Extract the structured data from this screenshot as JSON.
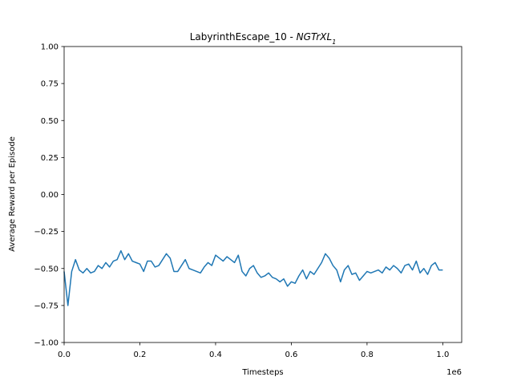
{
  "chart_data": {
    "type": "line",
    "title": "LabyrinthEscape_10 - ",
    "title_model": "NGTrXL",
    "title_subscript": "1",
    "xlabel": "Timesteps",
    "ylabel": "Average Reward per Episode",
    "x_offset_label": "1e6",
    "xlim": [
      0,
      1050000
    ],
    "ylim": [
      -1,
      1
    ],
    "xticks": [
      {
        "value": 0,
        "label": "0.0"
      },
      {
        "value": 200000,
        "label": "0.2"
      },
      {
        "value": 400000,
        "label": "0.4"
      },
      {
        "value": 600000,
        "label": "0.6"
      },
      {
        "value": 800000,
        "label": "0.8"
      },
      {
        "value": 1000000,
        "label": "1.0"
      }
    ],
    "yticks": [
      {
        "value": -1,
        "label": "−1.00"
      },
      {
        "value": -0.75,
        "label": "−0.75"
      },
      {
        "value": -0.5,
        "label": "−0.50"
      },
      {
        "value": -0.25,
        "label": "−0.25"
      },
      {
        "value": 0,
        "label": "0.00"
      },
      {
        "value": 0.25,
        "label": "0.25"
      },
      {
        "value": 0.5,
        "label": "0.50"
      },
      {
        "value": 0.75,
        "label": "0.75"
      },
      {
        "value": 1,
        "label": "1.00"
      }
    ],
    "x": [
      0,
      10000,
      20000,
      30000,
      40000,
      50000,
      60000,
      70000,
      80000,
      90000,
      100000,
      110000,
      120000,
      130000,
      140000,
      150000,
      160000,
      170000,
      180000,
      190000,
      200000,
      210000,
      220000,
      230000,
      240000,
      250000,
      260000,
      270000,
      280000,
      290000,
      300000,
      310000,
      320000,
      330000,
      340000,
      350000,
      360000,
      370000,
      380000,
      390000,
      400000,
      410000,
      420000,
      430000,
      440000,
      450000,
      460000,
      470000,
      480000,
      490000,
      500000,
      510000,
      520000,
      530000,
      540000,
      550000,
      560000,
      570000,
      580000,
      590000,
      600000,
      610000,
      620000,
      630000,
      640000,
      650000,
      660000,
      670000,
      680000,
      690000,
      700000,
      710000,
      720000,
      730000,
      740000,
      750000,
      760000,
      770000,
      780000,
      790000,
      800000,
      810000,
      820000,
      830000,
      840000,
      850000,
      860000,
      870000,
      880000,
      890000,
      900000,
      910000,
      920000,
      930000,
      940000,
      950000,
      960000,
      970000,
      980000,
      990000,
      1000000
    ],
    "series": [
      {
        "color": "#1f77b4",
        "values": [
          -0.52,
          -0.75,
          -0.52,
          -0.44,
          -0.51,
          -0.53,
          -0.5,
          -0.53,
          -0.52,
          -0.48,
          -0.5,
          -0.46,
          -0.49,
          -0.45,
          -0.44,
          -0.38,
          -0.44,
          -0.4,
          -0.45,
          -0.46,
          -0.47,
          -0.52,
          -0.45,
          -0.45,
          -0.49,
          -0.48,
          -0.44,
          -0.4,
          -0.43,
          -0.52,
          -0.52,
          -0.48,
          -0.44,
          -0.5,
          -0.51,
          -0.52,
          -0.53,
          -0.49,
          -0.46,
          -0.48,
          -0.41,
          -0.43,
          -0.45,
          -0.42,
          -0.44,
          -0.46,
          -0.41,
          -0.52,
          -0.55,
          -0.5,
          -0.48,
          -0.53,
          -0.56,
          -0.55,
          -0.53,
          -0.56,
          -0.57,
          -0.59,
          -0.57,
          -0.62,
          -0.59,
          -0.6,
          -0.55,
          -0.51,
          -0.57,
          -0.52,
          -0.54,
          -0.5,
          -0.46,
          -0.4,
          -0.43,
          -0.48,
          -0.51,
          -0.59,
          -0.51,
          -0.48,
          -0.54,
          -0.53,
          -0.58,
          -0.55,
          -0.52,
          -0.53,
          -0.52,
          -0.51,
          -0.53,
          -0.49,
          -0.51,
          -0.48,
          -0.5,
          -0.53,
          -0.48,
          -0.47,
          -0.51,
          -0.45,
          -0.53,
          -0.5,
          -0.54,
          -0.48,
          -0.46,
          -0.51,
          -0.51
        ]
      }
    ]
  }
}
